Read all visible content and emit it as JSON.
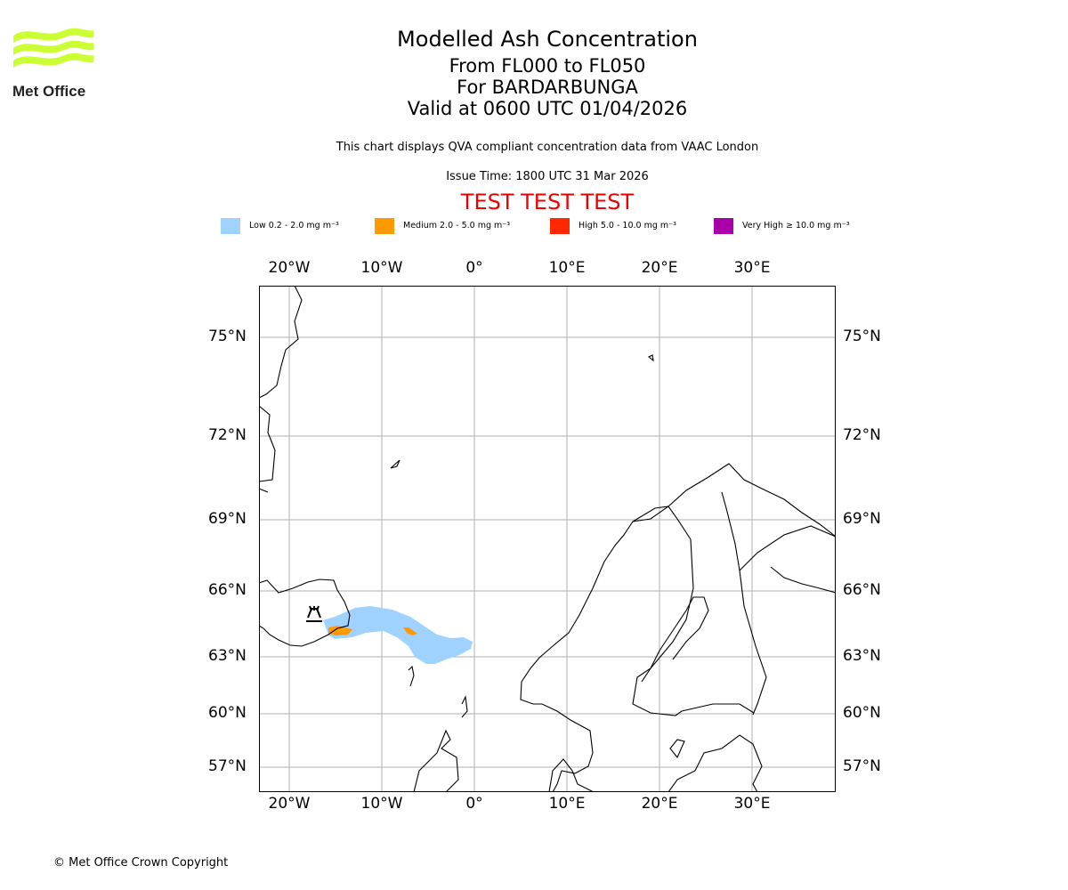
{
  "logo": {
    "text": "Met Office",
    "color": "#ccff33"
  },
  "header": {
    "title": "Modelled Ash Concentration",
    "levels": "From FL000 to FL050",
    "volcano": "For BARDARBUNGA",
    "valid": "Valid at 0600 UTC 01/04/2026",
    "note": "This chart displays QVA compliant concentration data from VAAC London",
    "issue": "Issue Time: 1800 UTC 31 Mar 2026",
    "test_banner": "TEST TEST TEST",
    "test_color": "#ee0000"
  },
  "legend": [
    {
      "label": "Low 0.2 - 2.0 mg m⁻³",
      "color": "#a0d2ff"
    },
    {
      "label": "Medium 2.0 - 5.0 mg m⁻³",
      "color": "#ff9900"
    },
    {
      "label": "High 5.0 - 10.0 mg m⁻³",
      "color": "#ff2800"
    },
    {
      "label": "Very High  ≥  10.0 mg m⁻³",
      "color": "#aa00aa"
    }
  ],
  "map": {
    "lon_labels": [
      "20°W",
      "10°W",
      "0°",
      "10°E",
      "20°E",
      "30°E"
    ],
    "lat_labels": [
      "75°N",
      "72°N",
      "69°N",
      "66°N",
      "63°N",
      "60°N",
      "57°N"
    ],
    "volcano_icon": "volcano-icon"
  },
  "footer": {
    "copyright": "© Met Office Crown Copyright"
  }
}
